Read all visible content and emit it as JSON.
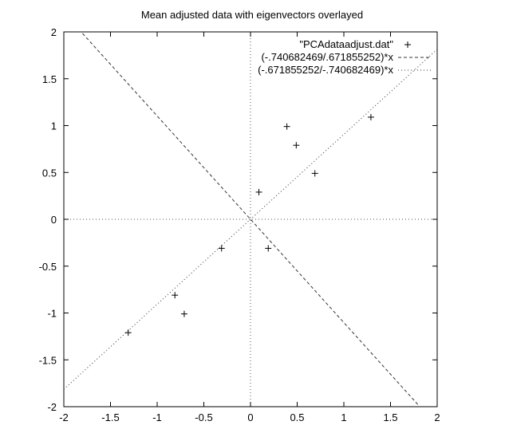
{
  "chart_data": {
    "type": "scatter",
    "title": "Mean adjusted data with eigenvectors overlayed",
    "xlabel": "",
    "ylabel": "",
    "xlim": [
      -2,
      2
    ],
    "ylim": [
      -2,
      2
    ],
    "x_ticks": [
      "-2",
      "-1.5",
      "-1",
      "-0.5",
      "0",
      "0.5",
      "1",
      "1.5",
      "2"
    ],
    "y_ticks": [
      "-2",
      "-1.5",
      "-1",
      "-0.5",
      "0",
      "0.5",
      "1",
      "1.5",
      "2"
    ],
    "legend_position": "top-right",
    "series": [
      {
        "name": "\"PCAdataadjust.dat\"",
        "kind": "points",
        "marker": "plus",
        "x": [
          0.69,
          -1.31,
          0.39,
          0.09,
          1.29,
          0.49,
          0.19,
          -0.81,
          -0.31,
          -0.71
        ],
        "y": [
          0.49,
          -1.21,
          0.99,
          0.29,
          1.09,
          0.79,
          -0.31,
          -0.81,
          -0.31,
          -1.01
        ]
      },
      {
        "name": "(-.740682469/.671855252)*x",
        "kind": "line",
        "style": "dashed",
        "slope": -1.10244
      },
      {
        "name": "(-.671855252/-.740682469)*x",
        "kind": "line",
        "style": "dotted",
        "slope": 0.907076
      }
    ],
    "zero_axes": true,
    "grid": false
  }
}
